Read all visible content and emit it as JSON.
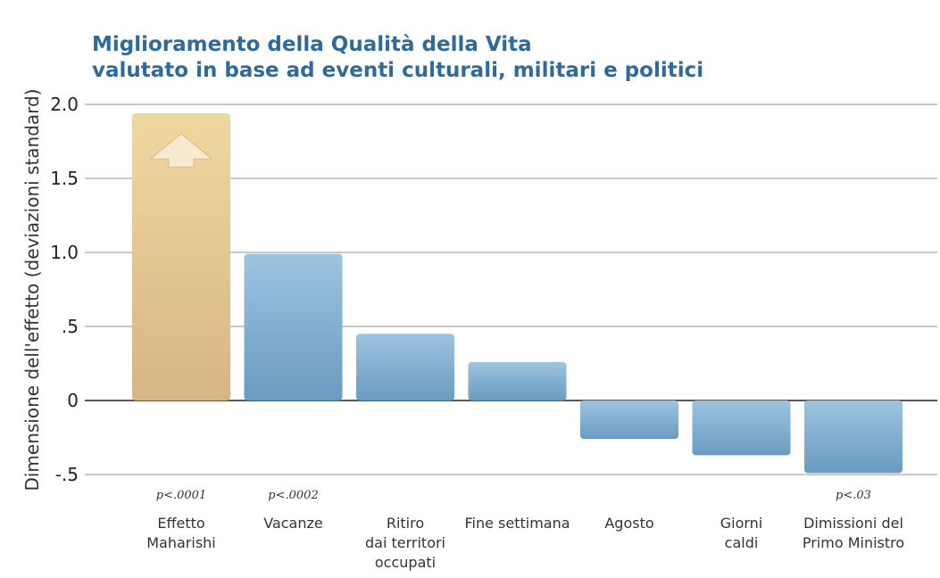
{
  "chart_data": {
    "type": "bar",
    "title": "Miglioramento della Qualità della Vita",
    "subtitle": "valutato in base ad eventi culturali, militari e politici",
    "ylabel": "Dimensione dell'effetto (deviazioni standard)",
    "xlabel": "",
    "ylim": [
      -0.5,
      2.0
    ],
    "yticks": [
      {
        "v": 2.0,
        "label": "2.0"
      },
      {
        "v": 1.5,
        "label": "1.5"
      },
      {
        "v": 1.0,
        "label": "1.0"
      },
      {
        "v": 0.5,
        "label": ".5"
      },
      {
        "v": 0,
        "label": "0"
      },
      {
        "v": -0.5,
        "label": "-.5"
      }
    ],
    "grid": true,
    "categories": [
      [
        "Effetto",
        "Maharishi"
      ],
      [
        "Vacanze"
      ],
      [
        "Ritiro",
        "dai territori",
        "occupati"
      ],
      [
        "Fine settimana"
      ],
      [
        "Agosto"
      ],
      [
        "Giorni",
        "caldi"
      ],
      [
        "Dimissioni del",
        "Primo Ministro"
      ]
    ],
    "values": [
      1.94,
      0.99,
      0.45,
      0.26,
      -0.26,
      -0.37,
      -0.49
    ],
    "p_values": [
      "p<.0001",
      "p<.0002",
      "",
      "",
      "",
      "",
      "p<.03"
    ],
    "highlight_index": 0,
    "colors": {
      "highlight_top": "#f0d7a0",
      "highlight_bottom": "#d6b585",
      "bar_top": "#9cc4e0",
      "bar_bottom": "#6a9bc0",
      "title": "#2f6a9a"
    },
    "annotations": [
      "arrow-up-icon on Effetto Maharishi bar"
    ]
  }
}
